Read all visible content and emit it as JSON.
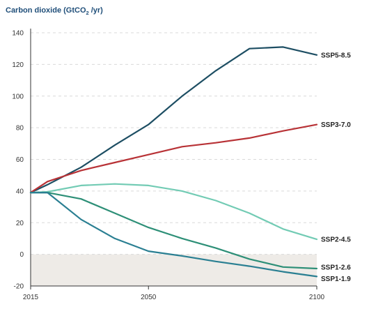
{
  "chart_data": {
    "type": "line",
    "title": {
      "main": "Carbon dioxide (GtCO",
      "sub": "2",
      "tail": " /yr)"
    },
    "x_ticks": [
      "2015",
      "2050",
      "2100"
    ],
    "xlim": [
      2015,
      2100
    ],
    "y_ticks": [
      "140",
      "120",
      "100",
      "80",
      "60",
      "40",
      "20",
      "0",
      "-20"
    ],
    "ylim": [
      -20,
      140
    ],
    "negative_region": {
      "from": -20,
      "to": 0,
      "color": "#eeebe7"
    },
    "series": [
      {
        "name": "SSP5-8.5",
        "color": "#1d4e63",
        "x": [
          2015,
          2020,
          2030,
          2040,
          2050,
          2060,
          2070,
          2080,
          2090,
          2100
        ],
        "y": [
          39,
          44,
          55,
          69,
          82,
          100,
          116,
          130,
          131,
          126
        ]
      },
      {
        "name": "SSP3-7.0",
        "color": "#b83236",
        "x": [
          2015,
          2020,
          2030,
          2040,
          2050,
          2060,
          2070,
          2080,
          2090,
          2100
        ],
        "y": [
          39,
          46,
          53,
          58,
          63,
          68,
          70.5,
          73.5,
          78,
          82
        ]
      },
      {
        "name": "SSP2-4.5",
        "color": "#72cbb4",
        "x": [
          2015,
          2020,
          2030,
          2040,
          2050,
          2060,
          2070,
          2080,
          2090,
          2100
        ],
        "y": [
          39,
          39.5,
          43.5,
          44.5,
          43.5,
          40,
          34,
          26,
          16,
          9.5
        ]
      },
      {
        "name": "SSP1-2.6",
        "color": "#2d8f77",
        "x": [
          2015,
          2020,
          2030,
          2040,
          2050,
          2060,
          2070,
          2080,
          2090,
          2100
        ],
        "y": [
          39,
          39,
          35,
          26,
          17,
          10,
          4,
          -3,
          -8,
          -9
        ]
      },
      {
        "name": "SSP1-1.9",
        "color": "#2a7f92",
        "x": [
          2015,
          2020,
          2030,
          2040,
          2050,
          2060,
          2070,
          2080,
          2090,
          2100
        ],
        "y": [
          39,
          39,
          22,
          10,
          2,
          -1,
          -4.5,
          -7.5,
          -11,
          -14
        ]
      }
    ]
  }
}
